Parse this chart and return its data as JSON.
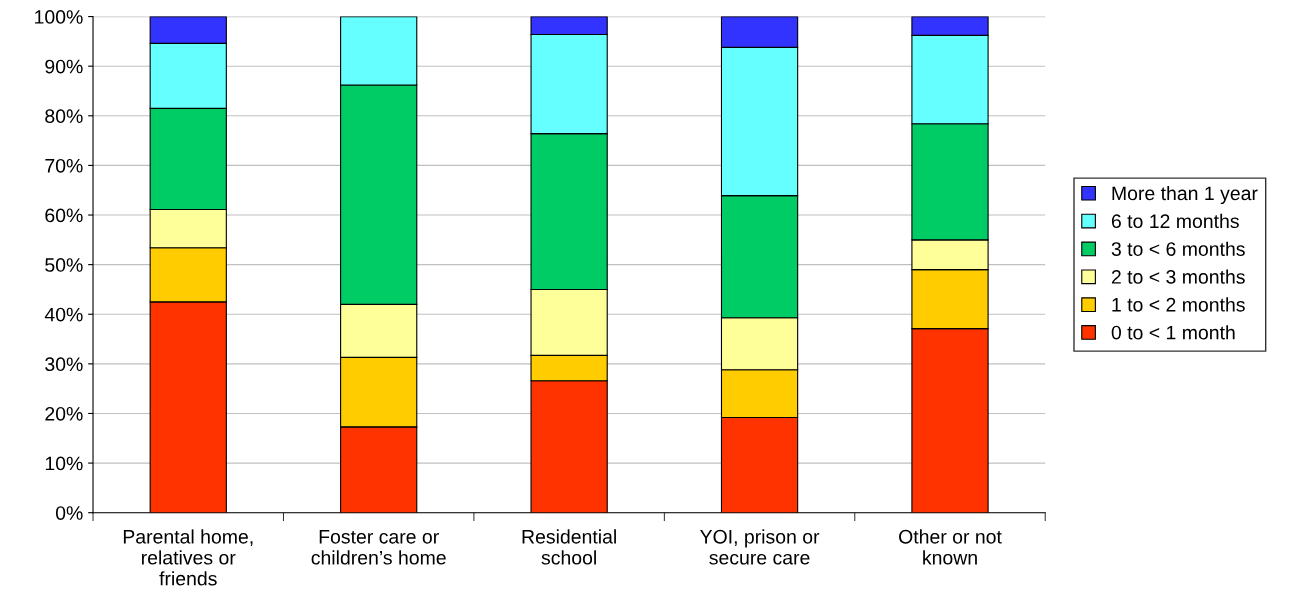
{
  "chart_data": {
    "type": "bar",
    "stacked": true,
    "categories": [
      "Parental home,\nrelatives or\nfriends",
      "Foster care or\nchildren’s home",
      "Residential\nschool",
      "YOI, prison or\nsecure care",
      "Other or not\nknown"
    ],
    "series": [
      {
        "name": "0 to < 1 month",
        "color": "#ff3300",
        "values": [
          42.5,
          17.3,
          26.6,
          19.2,
          37.1
        ]
      },
      {
        "name": "1 to < 2 months",
        "color": "#ffcc00",
        "values": [
          10.9,
          14.0,
          5.1,
          9.6,
          11.9
        ]
      },
      {
        "name": "2 to < 3 months",
        "color": "#ffff99",
        "values": [
          7.7,
          10.7,
          13.3,
          10.5,
          6.0
        ]
      },
      {
        "name": "3 to < 6 months",
        "color": "#00cc66",
        "values": [
          20.4,
          44.2,
          31.4,
          24.6,
          23.4
        ]
      },
      {
        "name": "6 to 12 months",
        "color": "#66ffff",
        "values": [
          13.1,
          13.8,
          20.0,
          29.9,
          17.8
        ]
      },
      {
        "name": "More than 1 year",
        "color": "#3333ff",
        "values": [
          5.4,
          null,
          3.6,
          6.2,
          3.8
        ]
      }
    ],
    "ylim": [
      0,
      100
    ],
    "yticks": [
      {
        "value": 0,
        "label": "0%"
      },
      {
        "value": 10,
        "label": "10%"
      },
      {
        "value": 20,
        "label": "20%"
      },
      {
        "value": 30,
        "label": "30%"
      },
      {
        "value": 40,
        "label": "40%"
      },
      {
        "value": 50,
        "label": "50%"
      },
      {
        "value": 60,
        "label": "60%"
      },
      {
        "value": 70,
        "label": "70%"
      },
      {
        "value": 80,
        "label": "80%"
      },
      {
        "value": 90,
        "label": "90%"
      },
      {
        "value": 100,
        "label": "100%"
      }
    ],
    "grid": "y",
    "legend": "right"
  }
}
